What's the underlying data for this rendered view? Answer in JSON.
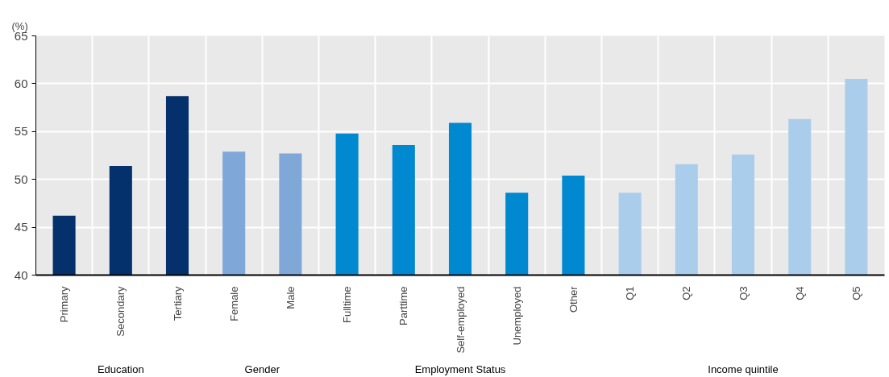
{
  "chart_data": {
    "type": "bar",
    "ylabel": "(%)",
    "categories": [
      "Primary",
      "Secondary",
      "Tertiary",
      "Female",
      "Male",
      "Fulltime",
      "Parttime",
      "Self-employed",
      "Unemployed",
      "Other",
      "Q1",
      "Q2",
      "Q3",
      "Q4",
      "Q5"
    ],
    "values": [
      46.2,
      51.4,
      58.7,
      52.9,
      52.7,
      54.8,
      53.6,
      55.9,
      48.6,
      50.4,
      48.6,
      51.6,
      52.6,
      56.3,
      60.5
    ],
    "colors": [
      "#04306b",
      "#04306b",
      "#04306b",
      "#7fa8d8",
      "#7fa8d8",
      "#0088d0",
      "#0088d0",
      "#0088d0",
      "#0088d0",
      "#0088d0",
      "#abcdec",
      "#abcdec",
      "#abcdec",
      "#abcdec",
      "#abcdec"
    ],
    "annotations": [
      "Education",
      "Gender",
      "Employment Status",
      "Income quintile"
    ],
    "ylim": [
      40,
      65
    ],
    "yticks": [
      40,
      45,
      50,
      55,
      60,
      65
    ],
    "grid": true
  }
}
